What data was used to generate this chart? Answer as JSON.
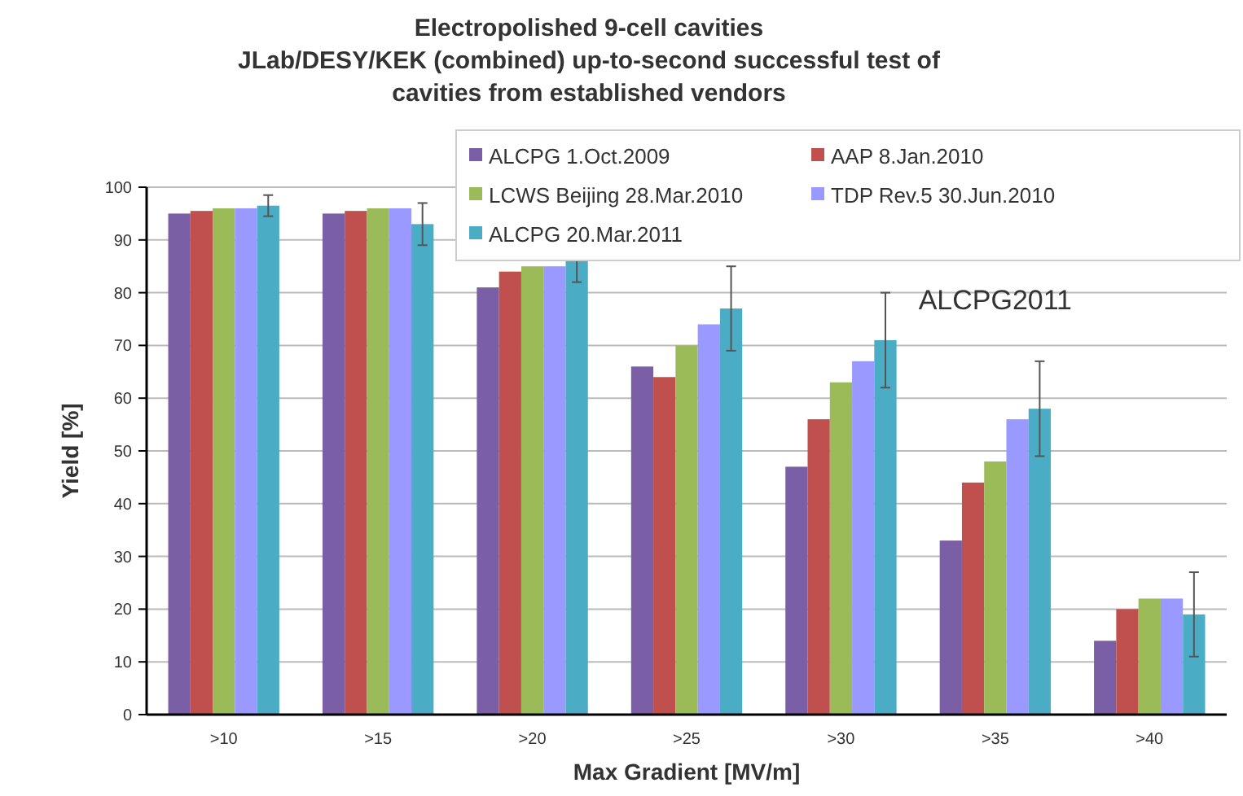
{
  "chart_data": {
    "type": "bar",
    "title": "Electropolished 9-cell cavities",
    "subtitle": "JLab/DESY/KEK (combined) up-to-second successful test of cavities from established vendors",
    "xlabel": "Max Gradient [MV/m]",
    "ylabel": "Yield [%]",
    "categories": [
      ">10",
      ">15",
      ">20",
      ">25",
      ">30",
      ">35",
      ">40"
    ],
    "series": [
      {
        "name": "ALCPG 1.Oct.2009",
        "color": "#7b5fa6",
        "values": [
          95,
          95,
          81,
          66,
          47,
          33,
          14
        ]
      },
      {
        "name": "AAP 8.Jan.2010",
        "color": "#c0504d",
        "values": [
          95.5,
          95.5,
          84,
          64,
          56,
          44,
          20
        ]
      },
      {
        "name": "LCWS Beijing 28.Mar.2010",
        "color": "#9bbb59",
        "values": [
          96,
          96,
          85,
          70,
          63,
          48,
          22
        ]
      },
      {
        "name": "TDP Rev.5 30.Jun.2010",
        "color": "#9999ff",
        "values": [
          96,
          96,
          85,
          74,
          67,
          56,
          22
        ]
      },
      {
        "name": "ALCPG 20.Mar.2011",
        "color": "#4bacc6",
        "values": [
          96.5,
          93,
          86,
          77,
          71,
          58,
          19
        ],
        "errors": [
          2,
          4,
          4,
          8,
          9,
          9,
          8
        ]
      }
    ],
    "ylim": [
      0,
      100
    ],
    "yticks": [
      0,
      10,
      20,
      30,
      40,
      50,
      60,
      70,
      80,
      90,
      100
    ],
    "grid": "y",
    "legend": "top right",
    "annotations": [
      "ALCPG2011"
    ]
  }
}
